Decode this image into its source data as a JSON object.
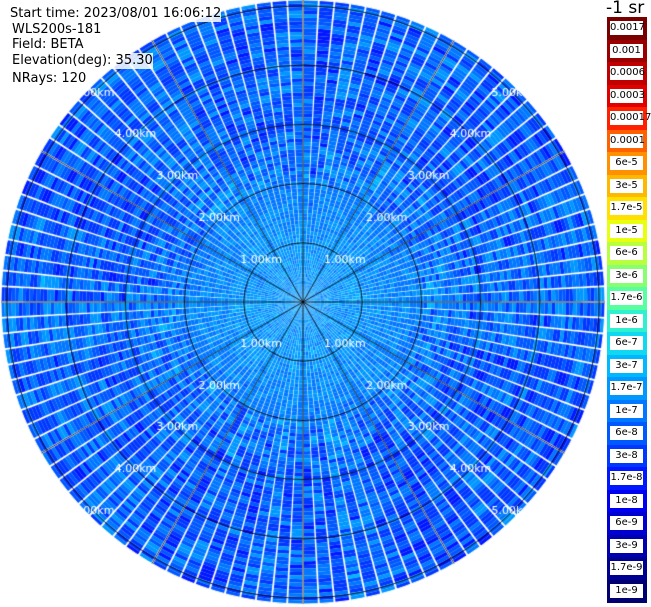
{
  "header": {
    "start_time": "Start time: 2023/08/01 16:06:12",
    "instrument": "WLS200s-181",
    "field": "Field: BETA",
    "elevation": "Elevation(deg): 35.30",
    "nrays": "NRays: 120"
  },
  "colorbar": {
    "title": "-1 sr",
    "labels": [
      "0.0017",
      "0.001",
      "0.0006",
      "0.0003",
      "0.00017",
      "0.0001",
      "6e-5",
      "3e-5",
      "1.7e-5",
      "1e-5",
      "6e-6",
      "3e-6",
      "1.7e-6",
      "1e-6",
      "6e-7",
      "3e-7",
      "1.7e-7",
      "1e-7",
      "6e-8",
      "3e-8",
      "1.7e-8",
      "1e-8",
      "6e-9",
      "3e-9",
      "1.7e-9",
      "1e-9"
    ],
    "colors": [
      "#7a0000",
      "#9a0000",
      "#c00000",
      "#e00000",
      "#ff2000",
      "#ff6000",
      "#ff9000",
      "#ffb800",
      "#ffe000",
      "#e8ff10",
      "#b8ff40",
      "#88ff70",
      "#58ffa0",
      "#30f0d0",
      "#10d8f0",
      "#00b8ff",
      "#0098ff",
      "#0078ff",
      "#0058ff",
      "#0038ff",
      "#0018ff",
      "#0000f0",
      "#0000d0",
      "#0000b0",
      "#000090",
      "#000070"
    ]
  },
  "chart_data": {
    "type": "heatmap",
    "projection": "polar (PPI scan)",
    "title": "",
    "field": "BETA",
    "units": "-1 sr",
    "elevation_deg": 35.3,
    "n_rays": 120,
    "range_rings_km": [
      1.0,
      2.0,
      3.0,
      4.0,
      5.0
    ],
    "range_ring_labels": [
      "1.00km",
      "2.00km",
      "3.00km",
      "4.00km",
      "5.00km"
    ],
    "spokes_deg": [
      0,
      30,
      60,
      90,
      120,
      150,
      180,
      210,
      240,
      270,
      300,
      330
    ],
    "scale": "log",
    "value_range": [
      1e-09,
      0.0017
    ],
    "radial_profile": [
      {
        "range_km": 0.0,
        "typical_value": 1.7e-07
      },
      {
        "range_km": 1.0,
        "typical_value": 1.7e-07
      },
      {
        "range_km": 2.0,
        "typical_value": 1e-07
      },
      {
        "range_km": 3.0,
        "typical_value": 6e-08
      },
      {
        "range_km": 4.0,
        "typical_value": 6e-08
      },
      {
        "range_km": 5.0,
        "typical_value": 6e-08
      }
    ]
  }
}
